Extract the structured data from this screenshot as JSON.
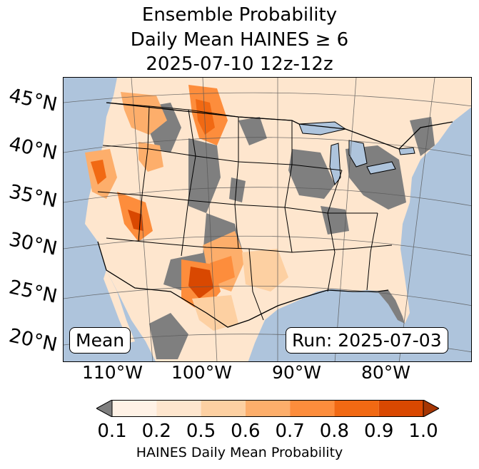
{
  "title": {
    "line1": "Ensemble Probability",
    "line2": "Daily Mean HAINES ≥ 6",
    "line3": "2025-07-10 12z-12z"
  },
  "map": {
    "lat_labels": [
      "45°N",
      "40°N",
      "35°N",
      "30°N",
      "25°N",
      "20°N"
    ],
    "lon_labels": [
      "110°W",
      "100°W",
      "90°W",
      "80°W"
    ],
    "colors": {
      "ocean": "#aec4dc",
      "no_data_land": "#7f7f7f",
      "low": "#fff2e6",
      "p02": "#fee6ce",
      "p05": "#fdd0a2",
      "p06": "#fdae6b",
      "p07": "#fd8d3c",
      "p08": "#f16913",
      "p09": "#d94801",
      "p10": "#a63603"
    }
  },
  "annotations": {
    "left_box": "Mean",
    "right_box": "Run: 2025-07-03"
  },
  "colorbar": {
    "ticks": [
      "0.1",
      "0.2",
      "0.5",
      "0.6",
      "0.7",
      "0.8",
      "0.9",
      "1.0"
    ],
    "colors": [
      "#fff2e6",
      "#fee6ce",
      "#fdd0a2",
      "#fdae6b",
      "#fd8d3c",
      "#f16913",
      "#d94801"
    ],
    "under_color": "#7f7f7f",
    "over_color": "#a63603",
    "label": "HAINES Daily Mean Probability"
  }
}
